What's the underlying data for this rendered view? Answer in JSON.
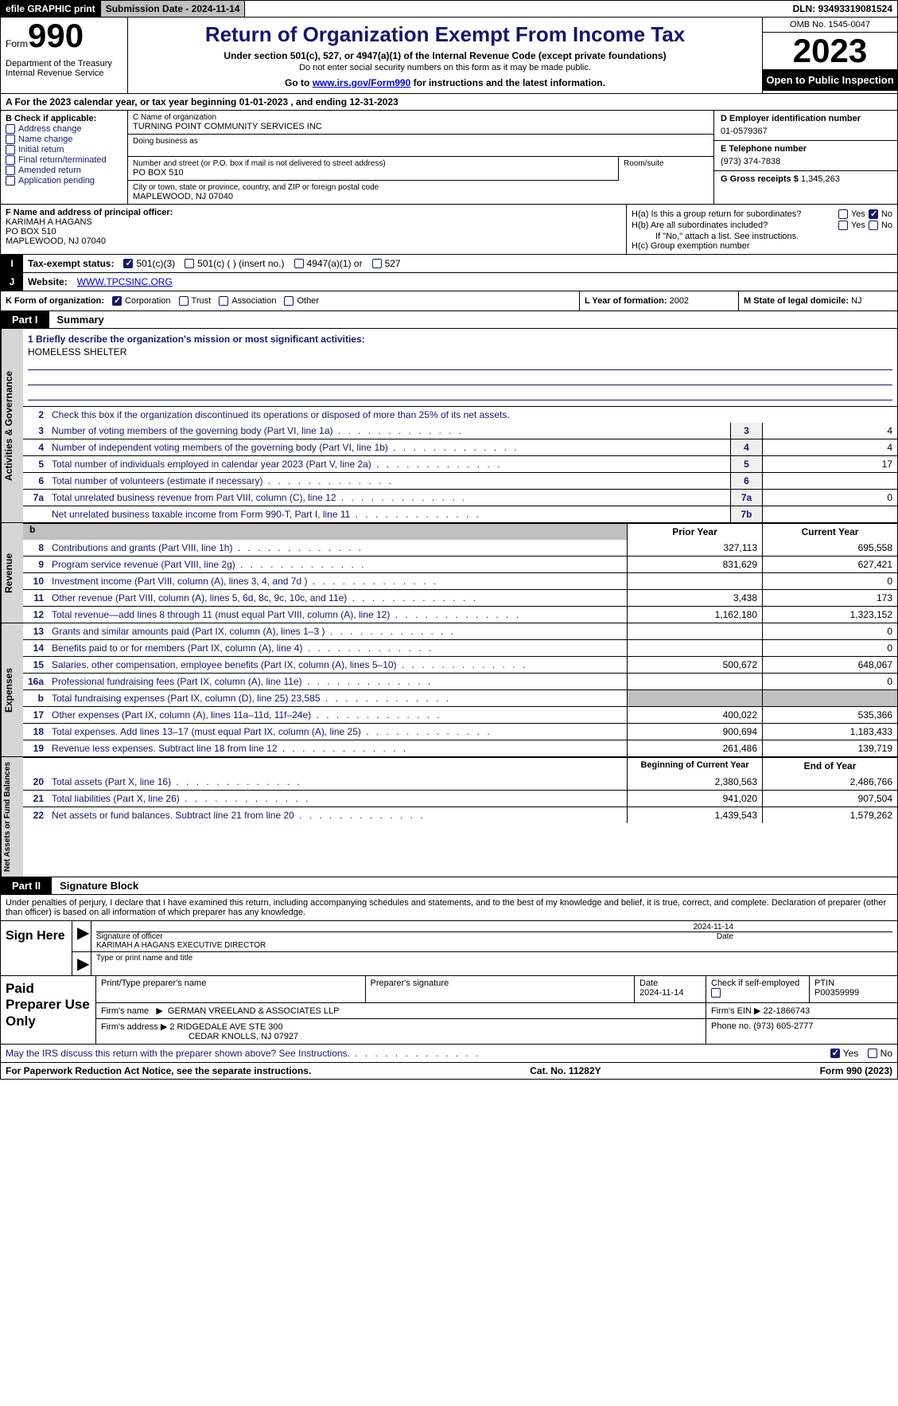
{
  "topbar": {
    "efile": "efile GRAPHIC print",
    "submission": "Submission Date - 2024-11-14",
    "dln": "DLN: 93493319081524"
  },
  "header": {
    "form_label": "Form",
    "form_number": "990",
    "dept": "Department of the Treasury\nInternal Revenue Service",
    "title": "Return of Organization Exempt From Income Tax",
    "sub": "Under section 501(c), 527, or 4947(a)(1) of the Internal Revenue Code (except private foundations)",
    "sub2": "Do not enter social security numbers on this form as it may be made public.",
    "goto_pre": "Go to ",
    "goto_link": "www.irs.gov/Form990",
    "goto_post": " for instructions and the latest information.",
    "omb": "OMB No. 1545-0047",
    "year": "2023",
    "inspection": "Open to Public Inspection"
  },
  "row_a": "A For the 2023 calendar year, or tax year beginning 01-01-2023   , and ending 12-31-2023",
  "col_b": {
    "label": "B Check if applicable:",
    "options": [
      "Address change",
      "Name change",
      "Initial return",
      "Final return/terminated",
      "Amended return",
      "Application pending"
    ]
  },
  "col_c": {
    "name_label": "C Name of organization",
    "name": "TURNING POINT COMMUNITY SERVICES INC",
    "dba_label": "Doing business as",
    "dba": "",
    "addr_label": "Number and street (or P.O. box if mail is not delivered to street address)",
    "addr": "PO BOX 510",
    "room_label": "Room/suite",
    "city_label": "City or town, state or province, country, and ZIP or foreign postal code",
    "city": "MAPLEWOOD, NJ  07040"
  },
  "col_d": {
    "ein_label": "D Employer identification number",
    "ein": "01-0579367",
    "phone_label": "E Telephone number",
    "phone": "(973) 374-7838",
    "receipts_label": "G Gross receipts $",
    "receipts": "1,345,263"
  },
  "f": {
    "label": "F  Name and address of principal officer:",
    "name": "KARIMAH A HAGANS",
    "addr1": "PO BOX 510",
    "addr2": "MAPLEWOOD, NJ  07040"
  },
  "h": {
    "a": "H(a)  Is this a group return for subordinates?",
    "b": "H(b)  Are all subordinates included?",
    "note": "If \"No,\" attach a list. See instructions.",
    "c": "H(c)  Group exemption number"
  },
  "i": {
    "label": "Tax-exempt status:",
    "opt1": "501(c)(3)",
    "opt2": "501(c) (  ) (insert no.)",
    "opt3": "4947(a)(1) or",
    "opt4": "527"
  },
  "j": {
    "label": "Website:",
    "value": "WWW.TPCSINC.ORG"
  },
  "k": {
    "label": "K Form of organization:",
    "opts": [
      "Corporation",
      "Trust",
      "Association",
      "Other"
    ]
  },
  "l": {
    "label": "L Year of formation:",
    "value": "2002"
  },
  "m": {
    "label": "M State of legal domicile:",
    "value": "NJ"
  },
  "part1": {
    "label": "Part I",
    "title": "Summary"
  },
  "summary": {
    "line1_label": "1  Briefly describe the organization's mission or most significant activities:",
    "line1_value": "HOMELESS SHELTER",
    "line2": "Check this box        if the organization discontinued its operations or disposed of more than 25% of its net assets.",
    "lines_gov": [
      {
        "n": "3",
        "desc": "Number of voting members of the governing body (Part VI, line 1a)",
        "box": "3",
        "val": "4"
      },
      {
        "n": "4",
        "desc": "Number of independent voting members of the governing body (Part VI, line 1b)",
        "box": "4",
        "val": "4"
      },
      {
        "n": "5",
        "desc": "Total number of individuals employed in calendar year 2023 (Part V, line 2a)",
        "box": "5",
        "val": "17"
      },
      {
        "n": "6",
        "desc": "Total number of volunteers (estimate if necessary)",
        "box": "6",
        "val": ""
      },
      {
        "n": "7a",
        "desc": "Total unrelated business revenue from Part VIII, column (C), line 12",
        "box": "7a",
        "val": "0"
      },
      {
        "n": "",
        "desc": "Net unrelated business taxable income from Form 990-T, Part I, line 11",
        "box": "7b",
        "val": ""
      }
    ],
    "rev_header": {
      "b": "b",
      "prior": "Prior Year",
      "current": "Current Year"
    },
    "lines_rev": [
      {
        "n": "8",
        "desc": "Contributions and grants (Part VIII, line 1h)",
        "prior": "327,113",
        "curr": "695,558"
      },
      {
        "n": "9",
        "desc": "Program service revenue (Part VIII, line 2g)",
        "prior": "831,629",
        "curr": "627,421"
      },
      {
        "n": "10",
        "desc": "Investment income (Part VIII, column (A), lines 3, 4, and 7d )",
        "prior": "",
        "curr": "0"
      },
      {
        "n": "11",
        "desc": "Other revenue (Part VIII, column (A), lines 5, 6d, 8c, 9c, 10c, and 11e)",
        "prior": "3,438",
        "curr": "173"
      },
      {
        "n": "12",
        "desc": "Total revenue—add lines 8 through 11 (must equal Part VIII, column (A), line 12)",
        "prior": "1,162,180",
        "curr": "1,323,152"
      }
    ],
    "lines_exp": [
      {
        "n": "13",
        "desc": "Grants and similar amounts paid (Part IX, column (A), lines 1–3 )",
        "prior": "",
        "curr": "0"
      },
      {
        "n": "14",
        "desc": "Benefits paid to or for members (Part IX, column (A), line 4)",
        "prior": "",
        "curr": "0"
      },
      {
        "n": "15",
        "desc": "Salaries, other compensation, employee benefits (Part IX, column (A), lines 5–10)",
        "prior": "500,672",
        "curr": "648,067"
      },
      {
        "n": "16a",
        "desc": "Professional fundraising fees (Part IX, column (A), line 11e)",
        "prior": "",
        "curr": "0"
      },
      {
        "n": "b",
        "desc": "Total fundraising expenses (Part IX, column (D), line 25) 23,585",
        "prior": "GRAY",
        "curr": "GRAY"
      },
      {
        "n": "17",
        "desc": "Other expenses (Part IX, column (A), lines 11a–11d, 11f–24e)",
        "prior": "400,022",
        "curr": "535,366"
      },
      {
        "n": "18",
        "desc": "Total expenses. Add lines 13–17 (must equal Part IX, column (A), line 25)",
        "prior": "900,694",
        "curr": "1,183,433"
      },
      {
        "n": "19",
        "desc": "Revenue less expenses. Subtract line 18 from line 12",
        "prior": "261,486",
        "curr": "139,719"
      }
    ],
    "na_header": {
      "begin": "Beginning of Current Year",
      "end": "End of Year"
    },
    "lines_na": [
      {
        "n": "20",
        "desc": "Total assets (Part X, line 16)",
        "prior": "2,380,563",
        "curr": "2,486,766"
      },
      {
        "n": "21",
        "desc": "Total liabilities (Part X, line 26)",
        "prior": "941,020",
        "curr": "907,504"
      },
      {
        "n": "22",
        "desc": "Net assets or fund balances. Subtract line 21 from line 20",
        "prior": "1,439,543",
        "curr": "1,579,262"
      }
    ]
  },
  "side_labels": {
    "gov": "Activities & Governance",
    "rev": "Revenue",
    "exp": "Expenses",
    "na": "Net Assets or Fund Balances"
  },
  "part2": {
    "label": "Part II",
    "title": "Signature Block"
  },
  "sig_text": "Under penalties of perjury, I declare that I have examined this return, including accompanying schedules and statements, and to the best of my knowledge and belief, it is true, correct, and complete. Declaration of preparer (other than officer) is based on all information of which preparer has any knowledge.",
  "sign": {
    "label": "Sign Here",
    "date": "2024-11-14",
    "sig_label": "Signature of officer",
    "name": "KARIMAH A HAGANS  EXECUTIVE DIRECTOR",
    "type_label": "Type or print name and title",
    "date_label": "Date"
  },
  "preparer": {
    "label": "Paid Preparer Use Only",
    "r1": {
      "name_label": "Print/Type preparer's name",
      "sig_label": "Preparer's signature",
      "date_label": "Date",
      "date": "2024-11-14",
      "check_label": "Check         if self-employed",
      "ptin_label": "PTIN",
      "ptin": "P00359999"
    },
    "r2": {
      "firm_label": "Firm's name",
      "firm": "GERMAN VREELAND & ASSOCIATES LLP",
      "ein_label": "Firm's EIN",
      "ein": "22-1866743"
    },
    "r3": {
      "addr_label": "Firm's address",
      "addr1": "2 RIDGEDALE AVE STE 300",
      "addr2": "CEDAR KNOLLS, NJ  07927",
      "phone_label": "Phone no.",
      "phone": "(973) 605-2777"
    }
  },
  "discuss": "May the IRS discuss this return with the preparer shown above? See Instructions.",
  "footer": {
    "left": "For Paperwork Reduction Act Notice, see the separate instructions.",
    "mid": "Cat. No. 11282Y",
    "right_pre": "Form ",
    "right_form": "990",
    "right_post": " (2023)"
  },
  "yes": "Yes",
  "no": "No"
}
